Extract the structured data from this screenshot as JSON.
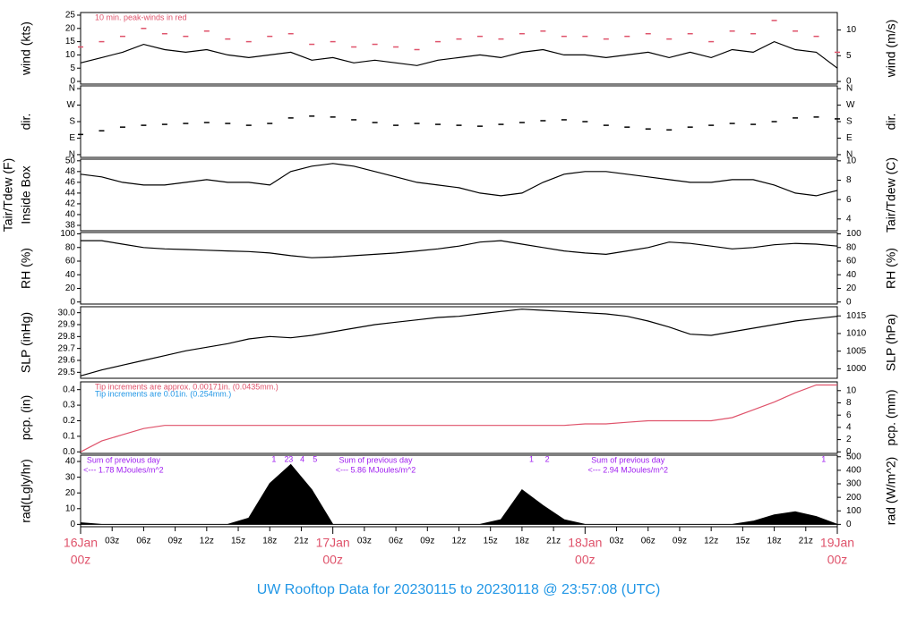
{
  "title": "UW Rooftop Data for 20230115  to  20230118 @ 23:57:08  (UTC)",
  "chart_data": [
    {
      "type": "line",
      "ylabel": "wind (kts)",
      "y2label": "wind (m/s)",
      "xlim": [
        0,
        72
      ],
      "ylim": [
        -1,
        26
      ],
      "yticks": [
        0,
        5,
        10,
        15,
        20,
        25
      ],
      "y2lim": [
        -0.51,
        13.4
      ],
      "y2ticks": [
        0,
        5,
        10
      ],
      "annotations": [
        {
          "text": "10 min. peak-winds in red",
          "color": "#df536b"
        }
      ],
      "x": [
        0,
        2,
        4,
        6,
        8,
        10,
        12,
        14,
        16,
        18,
        20,
        22,
        24,
        26,
        28,
        30,
        32,
        34,
        36,
        38,
        40,
        42,
        44,
        46,
        48,
        50,
        52,
        54,
        56,
        58,
        60,
        62,
        64,
        66,
        68,
        70,
        72
      ],
      "series": [
        {
          "color": "#000000",
          "values": [
            7,
            9,
            11,
            14,
            12,
            11,
            12,
            10,
            9,
            10,
            11,
            8,
            9,
            7,
            8,
            7,
            6,
            8,
            9,
            10,
            9,
            11,
            12,
            10,
            10,
            9,
            10,
            11,
            9,
            11,
            9,
            12,
            11,
            15,
            12,
            11,
            5
          ]
        },
        {
          "color": "#df536b",
          "marker": "dash",
          "values": [
            13,
            15,
            17,
            20,
            18,
            17,
            19,
            16,
            15,
            17,
            18,
            14,
            15,
            13,
            14,
            13,
            12,
            15,
            16,
            17,
            16,
            18,
            19,
            17,
            17,
            16,
            17,
            18,
            16,
            18,
            15,
            19,
            18,
            23,
            19,
            17,
            11
          ]
        }
      ]
    },
    {
      "type": "scatter",
      "ylabel": "dir.",
      "y2label": "dir.",
      "xlim": [
        0,
        72
      ],
      "ylim": [
        -15,
        375
      ],
      "yticks": [
        {
          "value": 0,
          "label": "N"
        },
        {
          "value": 90,
          "label": "E"
        },
        {
          "value": 180,
          "label": "S"
        },
        {
          "value": 270,
          "label": "W"
        },
        {
          "value": 360,
          "label": "N"
        }
      ],
      "y2lim": [
        -15,
        375
      ],
      "y2ticks": [
        {
          "value": 0,
          "label": "N"
        },
        {
          "value": 90,
          "label": "E"
        },
        {
          "value": 180,
          "label": "S"
        },
        {
          "value": 270,
          "label": "W"
        },
        {
          "value": 360,
          "label": "N"
        }
      ],
      "x": [
        0,
        2,
        4,
        6,
        8,
        10,
        12,
        14,
        16,
        18,
        20,
        22,
        24,
        26,
        28,
        30,
        32,
        34,
        36,
        38,
        40,
        42,
        44,
        46,
        48,
        50,
        52,
        54,
        56,
        58,
        60,
        62,
        64,
        66,
        68,
        70,
        72
      ],
      "series": [
        {
          "color": "#000000",
          "marker": "dash",
          "values": [
            110,
            130,
            150,
            160,
            165,
            170,
            175,
            170,
            160,
            170,
            200,
            210,
            205,
            190,
            175,
            160,
            170,
            165,
            160,
            155,
            165,
            175,
            185,
            190,
            180,
            160,
            150,
            140,
            135,
            150,
            160,
            170,
            165,
            180,
            200,
            205,
            195
          ]
        }
      ]
    },
    {
      "type": "line",
      "ylabel": "Inside Box",
      "ylabel_outer": "Tair/Tdew (F)",
      "y2label": "Tair/Tdew (C)",
      "xlim": [
        0,
        72
      ],
      "ylim": [
        37,
        50.3
      ],
      "yticks": [
        38,
        40,
        42,
        44,
        46,
        48,
        50
      ],
      "y2lim": [
        2.78,
        10.17
      ],
      "y2ticks": [
        4,
        6,
        8,
        10
      ],
      "x": [
        0,
        2,
        4,
        6,
        8,
        10,
        12,
        14,
        16,
        18,
        20,
        22,
        24,
        26,
        28,
        30,
        32,
        34,
        36,
        38,
        40,
        42,
        44,
        46,
        48,
        50,
        52,
        54,
        56,
        58,
        60,
        62,
        64,
        66,
        68,
        70,
        72
      ],
      "series": [
        {
          "color": "#000000",
          "values": [
            47.5,
            47,
            46,
            45.5,
            45.5,
            46,
            46.5,
            46,
            46,
            45.5,
            48,
            49,
            49.5,
            49,
            48,
            47,
            46,
            45.5,
            45,
            44,
            43.5,
            44,
            46,
            47.5,
            48,
            48,
            47.5,
            47,
            46.5,
            46,
            46,
            46.5,
            46.5,
            45.5,
            44,
            43.5,
            44.5
          ]
        }
      ]
    },
    {
      "type": "line",
      "ylabel": "RH (%)",
      "y2label": "RH (%)",
      "xlim": [
        0,
        72
      ],
      "ylim": [
        -3,
        102
      ],
      "yticks": [
        0,
        20,
        40,
        60,
        80,
        100
      ],
      "y2lim": [
        -3,
        102
      ],
      "y2ticks": [
        0,
        20,
        40,
        60,
        80,
        100
      ],
      "x": [
        0,
        2,
        4,
        6,
        8,
        10,
        12,
        14,
        16,
        18,
        20,
        22,
        24,
        26,
        28,
        30,
        32,
        34,
        36,
        38,
        40,
        42,
        44,
        46,
        48,
        50,
        52,
        54,
        56,
        58,
        60,
        62,
        64,
        66,
        68,
        70,
        72
      ],
      "series": [
        {
          "color": "#000000",
          "values": [
            90,
            90,
            85,
            80,
            78,
            77,
            76,
            75,
            74,
            72,
            68,
            65,
            66,
            68,
            70,
            72,
            75,
            78,
            82,
            88,
            90,
            85,
            80,
            75,
            72,
            70,
            75,
            80,
            88,
            86,
            82,
            78,
            80,
            84,
            86,
            85,
            82
          ]
        }
      ]
    },
    {
      "type": "line",
      "ylabel": "SLP (inHg)",
      "y2label": "SLP (hPa)",
      "xlim": [
        0,
        72
      ],
      "ylim": [
        29.45,
        30.05
      ],
      "yticks": [
        29.5,
        29.6,
        29.7,
        29.8,
        29.9,
        {
          "value": 30.0,
          "label": "30.0"
        }
      ],
      "y2lim": [
        997.3,
        1017.6
      ],
      "y2ticks": [
        1000,
        1005,
        1010,
        1015
      ],
      "x": [
        0,
        2,
        4,
        6,
        8,
        10,
        12,
        14,
        16,
        18,
        20,
        22,
        24,
        26,
        28,
        30,
        32,
        34,
        36,
        38,
        40,
        42,
        44,
        46,
        48,
        50,
        52,
        54,
        56,
        58,
        60,
        62,
        64,
        66,
        68,
        70,
        72
      ],
      "series": [
        {
          "color": "#000000",
          "values": [
            29.47,
            29.52,
            29.56,
            29.6,
            29.64,
            29.68,
            29.71,
            29.74,
            29.78,
            29.8,
            29.79,
            29.81,
            29.84,
            29.87,
            29.9,
            29.92,
            29.94,
            29.96,
            29.97,
            29.99,
            30.01,
            30.03,
            30.02,
            30.01,
            30.0,
            29.99,
            29.97,
            29.93,
            29.88,
            29.82,
            29.81,
            29.84,
            29.87,
            29.9,
            29.93,
            29.95,
            29.97
          ]
        }
      ]
    },
    {
      "type": "line",
      "ylabel": "pcp. (in)",
      "y2label": "pcp. (mm)",
      "xlim": [
        0,
        72
      ],
      "ylim": [
        -0.01,
        0.45
      ],
      "yticks": [
        {
          "value": 0,
          "label": "0.0"
        },
        0.1,
        0.2,
        0.3,
        0.4
      ],
      "y2lim": [
        -0.25,
        11.43
      ],
      "y2ticks": [
        0,
        2,
        4,
        6,
        8,
        10
      ],
      "annotations": [
        {
          "text": "Tip increments are approx. 0.00171in. (0.0435mm.)",
          "color": "#df536b"
        },
        {
          "text": "Tip increments are 0.01in. (0.254mm.)",
          "color": "#2297e6"
        }
      ],
      "x": [
        0,
        2,
        4,
        6,
        8,
        10,
        12,
        14,
        16,
        18,
        20,
        22,
        24,
        26,
        28,
        30,
        32,
        34,
        36,
        38,
        40,
        42,
        44,
        46,
        48,
        50,
        52,
        54,
        56,
        58,
        60,
        62,
        64,
        66,
        68,
        70,
        72
      ],
      "series": [
        {
          "color": "#df536b",
          "values": [
            0,
            0.07,
            0.11,
            0.15,
            0.17,
            0.17,
            0.17,
            0.17,
            0.17,
            0.17,
            0.17,
            0.17,
            0.17,
            0.17,
            0.17,
            0.17,
            0.17,
            0.17,
            0.17,
            0.17,
            0.17,
            0.17,
            0.17,
            0.17,
            0.18,
            0.18,
            0.19,
            0.2,
            0.2,
            0.2,
            0.2,
            0.22,
            0.27,
            0.32,
            0.38,
            0.43,
            0.43
          ]
        }
      ]
    },
    {
      "type": "area",
      "ylabel": "rad(Lgly/hr)",
      "y2label": "rad (W/m^2)",
      "xlim": [
        0,
        72
      ],
      "ylim": [
        -1.5,
        44
      ],
      "yticks": [
        0,
        10,
        20,
        30,
        40
      ],
      "y2lim": [
        -17.4,
        511.7
      ],
      "y2ticks": [
        0,
        100,
        200,
        300,
        400,
        500
      ],
      "day_sums": [
        {
          "label": "Sum of previous day",
          "value_text": "<--- 1.78 MJoules/m^2"
        },
        {
          "label": "Sum of previous day",
          "value_text": "<--- 5.86 MJoules/m^2"
        },
        {
          "label": "Sum of previous day",
          "value_text": "<--- 2.94 MJoules/m^2"
        }
      ],
      "markers": [
        {
          "x": 18.4,
          "label": "1"
        },
        {
          "x": 19.6,
          "label": "2"
        },
        {
          "x": 20.0,
          "label": "3"
        },
        {
          "x": 21.1,
          "label": "4"
        },
        {
          "x": 22.3,
          "label": "5"
        },
        {
          "x": 42.9,
          "label": "1"
        },
        {
          "x": 44.4,
          "label": "2"
        },
        {
          "x": 70.7,
          "label": "1"
        }
      ],
      "x": [
        0,
        2,
        4,
        6,
        8,
        10,
        12,
        14,
        16,
        18,
        20,
        22,
        24,
        26,
        28,
        30,
        32,
        34,
        36,
        38,
        40,
        42,
        44,
        46,
        48,
        50,
        52,
        54,
        56,
        58,
        60,
        62,
        64,
        66,
        68,
        70,
        72
      ],
      "series": [
        {
          "color": "#000000",
          "values": [
            1,
            0,
            0,
            0,
            0,
            0,
            0,
            0,
            4,
            26,
            38,
            22,
            0,
            0,
            0,
            0,
            0,
            0,
            0,
            0,
            3,
            22,
            12,
            3,
            0,
            0,
            0,
            0,
            0,
            0,
            0,
            0,
            2,
            6,
            8,
            5,
            0
          ]
        }
      ],
      "xticks": [
        {
          "value": 0,
          "label": "00z"
        },
        {
          "value": 3,
          "label": "03z"
        },
        {
          "value": 6,
          "label": "06z"
        },
        {
          "value": 9,
          "label": "09z"
        },
        {
          "value": 12,
          "label": "12z"
        },
        {
          "value": 15,
          "label": "15z"
        },
        {
          "value": 18,
          "label": "18z"
        },
        {
          "value": 21,
          "label": "21z"
        },
        {
          "value": 24,
          "label": "00z"
        },
        {
          "value": 27,
          "label": "03z"
        },
        {
          "value": 30,
          "label": "06z"
        },
        {
          "value": 33,
          "label": "09z"
        },
        {
          "value": 36,
          "label": "12z"
        },
        {
          "value": 39,
          "label": "15z"
        },
        {
          "value": 42,
          "label": "18z"
        },
        {
          "value": 45,
          "label": "21z"
        },
        {
          "value": 48,
          "label": "00z"
        },
        {
          "value": 51,
          "label": "03z"
        },
        {
          "value": 54,
          "label": "06z"
        },
        {
          "value": 57,
          "label": "09z"
        },
        {
          "value": 60,
          "label": "12z"
        },
        {
          "value": 63,
          "label": "15z"
        },
        {
          "value": 66,
          "label": "18z"
        },
        {
          "value": 69,
          "label": "21z"
        },
        {
          "value": 72,
          "label": "00z"
        }
      ],
      "date_labels": [
        {
          "value": 0,
          "label": "16Jan"
        },
        {
          "value": 24,
          "label": "17Jan"
        },
        {
          "value": 48,
          "label": "18Jan"
        },
        {
          "value": 72,
          "label": "19Jan"
        }
      ]
    }
  ]
}
